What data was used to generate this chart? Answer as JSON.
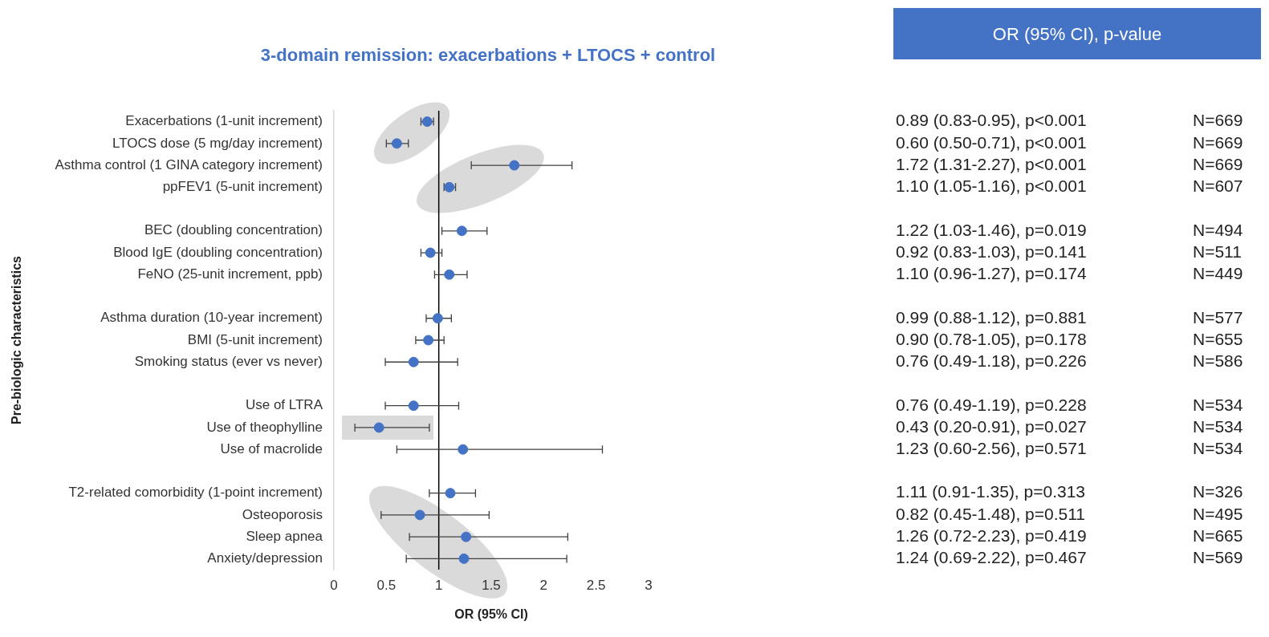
{
  "chart_data": {
    "type": "scatter",
    "orientation": "horizontal",
    "title": "3-domain remission: exacerbations + LTOCS + control",
    "subtitle": "OR (95% CI), p-value",
    "xlabel": "OR (95% CI)",
    "ylabel": "Pre-biologic characteristics",
    "categories": [
      "Exacerbations (1-unit increment)",
      "LTOCS dose (5 mg/day increment)",
      "Asthma control (1 GINA category increment)",
      "ppFEV1 (5-unit increment)",
      null,
      "BEC (doubling concentration)",
      "Blood IgE (doubling concentration)",
      "FeNO (25-unit increment, ppb)",
      null,
      "Asthma duration (10-year increment)",
      "BMI (5-unit increment)",
      "Smoking status (ever vs never)",
      null,
      "Use of LTRA",
      "Use of theophylline",
      "Use of macrolide",
      null,
      "T2-related comorbidity (1-point increment)",
      "Osteoporosis",
      "Sleep apnea",
      "Anxiety/depression"
    ],
    "values": [
      0.89,
      0.6,
      1.72,
      1.1,
      null,
      1.22,
      0.92,
      1.1,
      null,
      0.99,
      0.9,
      0.76,
      null,
      0.76,
      0.43,
      1.23,
      null,
      1.11,
      0.82,
      1.26,
      1.24
    ],
    "errors": [
      [
        0.83,
        0.95
      ],
      [
        0.5,
        0.71
      ],
      [
        1.31,
        2.27
      ],
      [
        1.05,
        1.16
      ],
      null,
      [
        1.03,
        1.46
      ],
      [
        0.83,
        1.03
      ],
      [
        0.96,
        1.27
      ],
      null,
      [
        0.88,
        1.12
      ],
      [
        0.78,
        1.05
      ],
      [
        0.49,
        1.18
      ],
      null,
      [
        0.49,
        1.19
      ],
      [
        0.2,
        0.91
      ],
      [
        0.6,
        2.56
      ],
      null,
      [
        0.91,
        1.35
      ],
      [
        0.45,
        1.48
      ],
      [
        0.72,
        2.23
      ],
      [
        0.69,
        2.22
      ]
    ],
    "value_labels": [
      "0.89 (0.83-0.95), p<0.001",
      "0.60 (0.50-0.71), p<0.001",
      "1.72 (1.31-2.27), p<0.001",
      "1.10 (1.05-1.16), p<0.001",
      null,
      "1.22 (1.03-1.46), p=0.019",
      "0.92 (0.83-1.03), p=0.141",
      "1.10 (0.96-1.27), p=0.174",
      null,
      "0.99 (0.88-1.12), p=0.881",
      "0.90 (0.78-1.05), p=0.178",
      "0.76 (0.49-1.18), p=0.226",
      null,
      "0.76 (0.49-1.19), p=0.228",
      "0.43 (0.20-0.91), p=0.027",
      "1.23 (0.60-2.56), p=0.571",
      null,
      "1.11 (0.91-1.35), p=0.313",
      "0.82 (0.45-1.48), p=0.511",
      "1.26 (0.72-2.23), p=0.419",
      "1.24 (0.69-2.22), p=0.467"
    ],
    "annotations": [
      "N=669",
      "N=669",
      "N=669",
      "N=607",
      "N=494",
      "N=511",
      "N=449",
      "N=577",
      "N=655",
      "N=586",
      "N=534",
      "N=534",
      "N=534",
      "N=326",
      "N=495",
      "N=665",
      "N=569"
    ],
    "color": "#4472c4",
    "marker": "circle",
    "xlim": [
      0,
      3
    ],
    "xticks": [
      0,
      0.5,
      1,
      1.5,
      2,
      2.5,
      3
    ],
    "ref_lines": [
      {
        "axis": "x",
        "value": 1,
        "color": "#000000"
      }
    ]
  }
}
